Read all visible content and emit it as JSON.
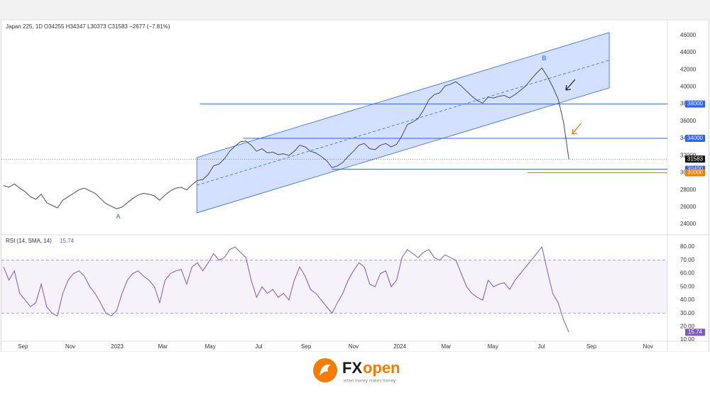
{
  "chart_data": [
    {
      "type": "line",
      "title": "Japan 225, 1D",
      "ohlc_text": "O34255  H34347  L30373  C31583  −2677 (−7.81%)",
      "color": "#4a4a4a",
      "xlim": [
        -0.4,
        123.3
      ],
      "xticks": [
        {
          "value": 3.6,
          "label": "Sep"
        },
        {
          "value": 12.4,
          "label": "Nov"
        },
        {
          "value": 21.1,
          "label": "2023"
        },
        {
          "value": 29.6,
          "label": "Mar"
        },
        {
          "value": 38.4,
          "label": "May"
        },
        {
          "value": 47.4,
          "label": "Jul"
        },
        {
          "value": 56.2,
          "label": "Sep"
        },
        {
          "value": 65.0,
          "label": "Nov"
        },
        {
          "value": 73.6,
          "label": "2024"
        },
        {
          "value": 82.2,
          "label": "Mar"
        },
        {
          "value": 90.9,
          "label": "May"
        },
        {
          "value": 99.9,
          "label": "Jul"
        },
        {
          "value": 109.2,
          "label": "Sep"
        },
        {
          "value": 119.7,
          "label": "Nov"
        }
      ],
      "ylim": [
        22850,
        47800
      ],
      "yticks": [
        24000,
        26000,
        28000,
        30000,
        32000,
        34000,
        36000,
        38000,
        40000,
        42000,
        44000,
        46000
      ],
      "values": [
        28500,
        28300,
        28700,
        28200,
        27800,
        27200,
        26900,
        27500,
        26500,
        26200,
        25900,
        26800,
        27200,
        27600,
        28000,
        28200,
        27900,
        27600,
        27000,
        26400,
        26100,
        25800,
        26000,
        26500,
        27000,
        27400,
        27600,
        27500,
        27300,
        26800,
        27400,
        27900,
        28200,
        28300,
        28000,
        28600,
        29100,
        29200,
        29800,
        30800,
        31000,
        31600,
        32500,
        33100,
        33600,
        33700,
        33200,
        32500,
        32800,
        32300,
        32400,
        32100,
        32200,
        32000,
        32500,
        33200,
        33000,
        32500,
        32300,
        31900,
        31400,
        30600,
        30800,
        31200,
        31900,
        32500,
        33200,
        33400,
        32800,
        32700,
        33200,
        33400,
        33000,
        33300,
        34300,
        35600,
        35900,
        36300,
        37300,
        38500,
        39100,
        39300,
        40100,
        40300,
        40600,
        40100,
        39500,
        38900,
        38400,
        38100,
        38800,
        38700,
        38900,
        39000,
        38700,
        39100,
        39600,
        40100,
        40900,
        41600,
        42200,
        41200,
        40000,
        38600,
        35900,
        31583
      ],
      "last_price": 31583,
      "levels": [
        {
          "value": 38000,
          "start": 36.5,
          "color": "#2962ff"
        },
        {
          "value": 34000,
          "start": 44.5,
          "color": "#2962ff"
        },
        {
          "value": 30400,
          "start": 61.0,
          "color": "#2962ff"
        },
        {
          "value": 30000,
          "start": 97.3,
          "color": "#f57c00"
        }
      ],
      "channel": {
        "start": 35.9,
        "end": 112.5,
        "upper": [
          31774,
          46331
        ],
        "lower": [
          25323,
          39880
        ]
      },
      "annotations": [
        {
          "text": "A",
          "x": 21.3,
          "y": 24850
        },
        {
          "text": "B",
          "x": 100.4,
          "y": 43300
        }
      ]
    },
    {
      "type": "line",
      "title": "RSI (14, SMA, 14)",
      "last_value_label": "15.74",
      "color": "#7e57c2",
      "ylim": [
        9.5,
        88.6
      ],
      "yticks": [
        {
          "value": 10,
          "label": "10.00"
        },
        {
          "value": 20,
          "label": "20.00"
        },
        {
          "value": 30,
          "label": "30.00"
        },
        {
          "value": 40,
          "label": "40.00"
        },
        {
          "value": 50,
          "label": "50.00"
        },
        {
          "value": 60,
          "label": "60.00"
        },
        {
          "value": 70,
          "label": "70.00"
        },
        {
          "value": 80,
          "label": "80.00"
        }
      ],
      "bands": [
        30,
        70
      ],
      "values": [
        65,
        55,
        62,
        45,
        40,
        35,
        38,
        52,
        35,
        30,
        28,
        45,
        55,
        60,
        62,
        58,
        50,
        45,
        38,
        30,
        28,
        32,
        45,
        55,
        60,
        62,
        58,
        55,
        50,
        38,
        55,
        60,
        62,
        63,
        52,
        65,
        68,
        62,
        68,
        75,
        70,
        72,
        78,
        80,
        76,
        72,
        55,
        42,
        50,
        45,
        48,
        42,
        45,
        40,
        55,
        65,
        58,
        48,
        45,
        40,
        35,
        30,
        38,
        45,
        55,
        62,
        68,
        65,
        52,
        50,
        60,
        62,
        50,
        55,
        72,
        78,
        75,
        72,
        76,
        78,
        72,
        70,
        74,
        72,
        70,
        60,
        50,
        45,
        42,
        40,
        55,
        50,
        52,
        53,
        48,
        55,
        60,
        65,
        70,
        75,
        80,
        62,
        45,
        38,
        25,
        15.74
      ]
    }
  ],
  "brand": {
    "name_a": "FX",
    "name_b": "open",
    "tagline": "when money makes money"
  }
}
